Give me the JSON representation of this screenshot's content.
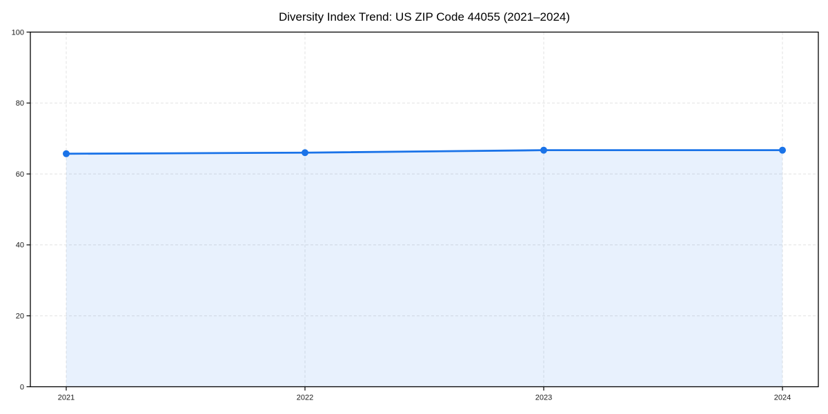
{
  "chart_data": {
    "type": "area",
    "title": "Diversity Index Trend: US ZIP Code 44055 (2021–2024)",
    "categories": [
      "2021",
      "2022",
      "2023",
      "2024"
    ],
    "series": [
      {
        "name": "Diversity Index",
        "values": [
          65.7,
          66.0,
          66.7,
          66.7
        ]
      }
    ],
    "ylim": [
      0,
      100
    ],
    "yticks": [
      0,
      20,
      40,
      60,
      80,
      100
    ],
    "grid": true,
    "grid_style": "dashed",
    "legend_position": "none",
    "line_color": "#1a73e8",
    "fill_opacity": 0.1,
    "grid_color": "#e1e1e1",
    "axis_color": "#000000",
    "tick_color": "#1a1a1a",
    "marker": "circle"
  }
}
